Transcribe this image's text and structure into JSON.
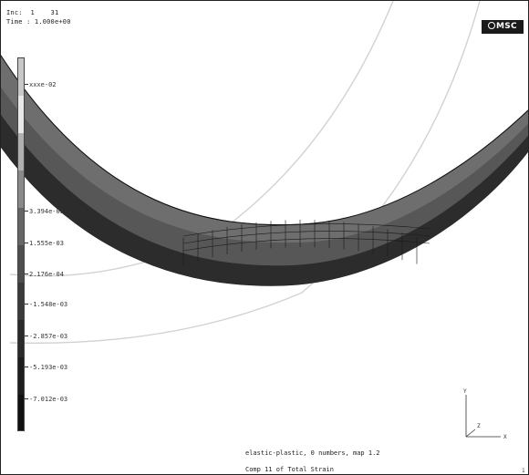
{
  "header": {
    "inc_label": "Inc:  1    31",
    "time_label": "Time : 1.000e+00"
  },
  "logo": {
    "text": "MSC"
  },
  "legend": {
    "ticks": [
      "xxxe-02",
      "3.394e-03",
      "1.555e-03",
      "2.176e-04",
      "-1.548e-03",
      "-2.857e-03",
      "-5.193e-03",
      "-7.012e-03"
    ],
    "colors": [
      "#c8c8c8",
      "#e8e8e8",
      "#b0b0b0",
      "#8a8a8a",
      "#666666",
      "#4e4e4e",
      "#3a3a3a",
      "#2a2a2a",
      "#1d1d1d",
      "#111111"
    ]
  },
  "footer": {
    "job_title": "elastic-plastic, 0 numbers, map 1.2",
    "scalar_label": "Comp 11 of Total Strain"
  },
  "axes": {
    "y_label": "Y",
    "x_label": "X",
    "z_label": "Z"
  },
  "corner_mark": "1"
}
